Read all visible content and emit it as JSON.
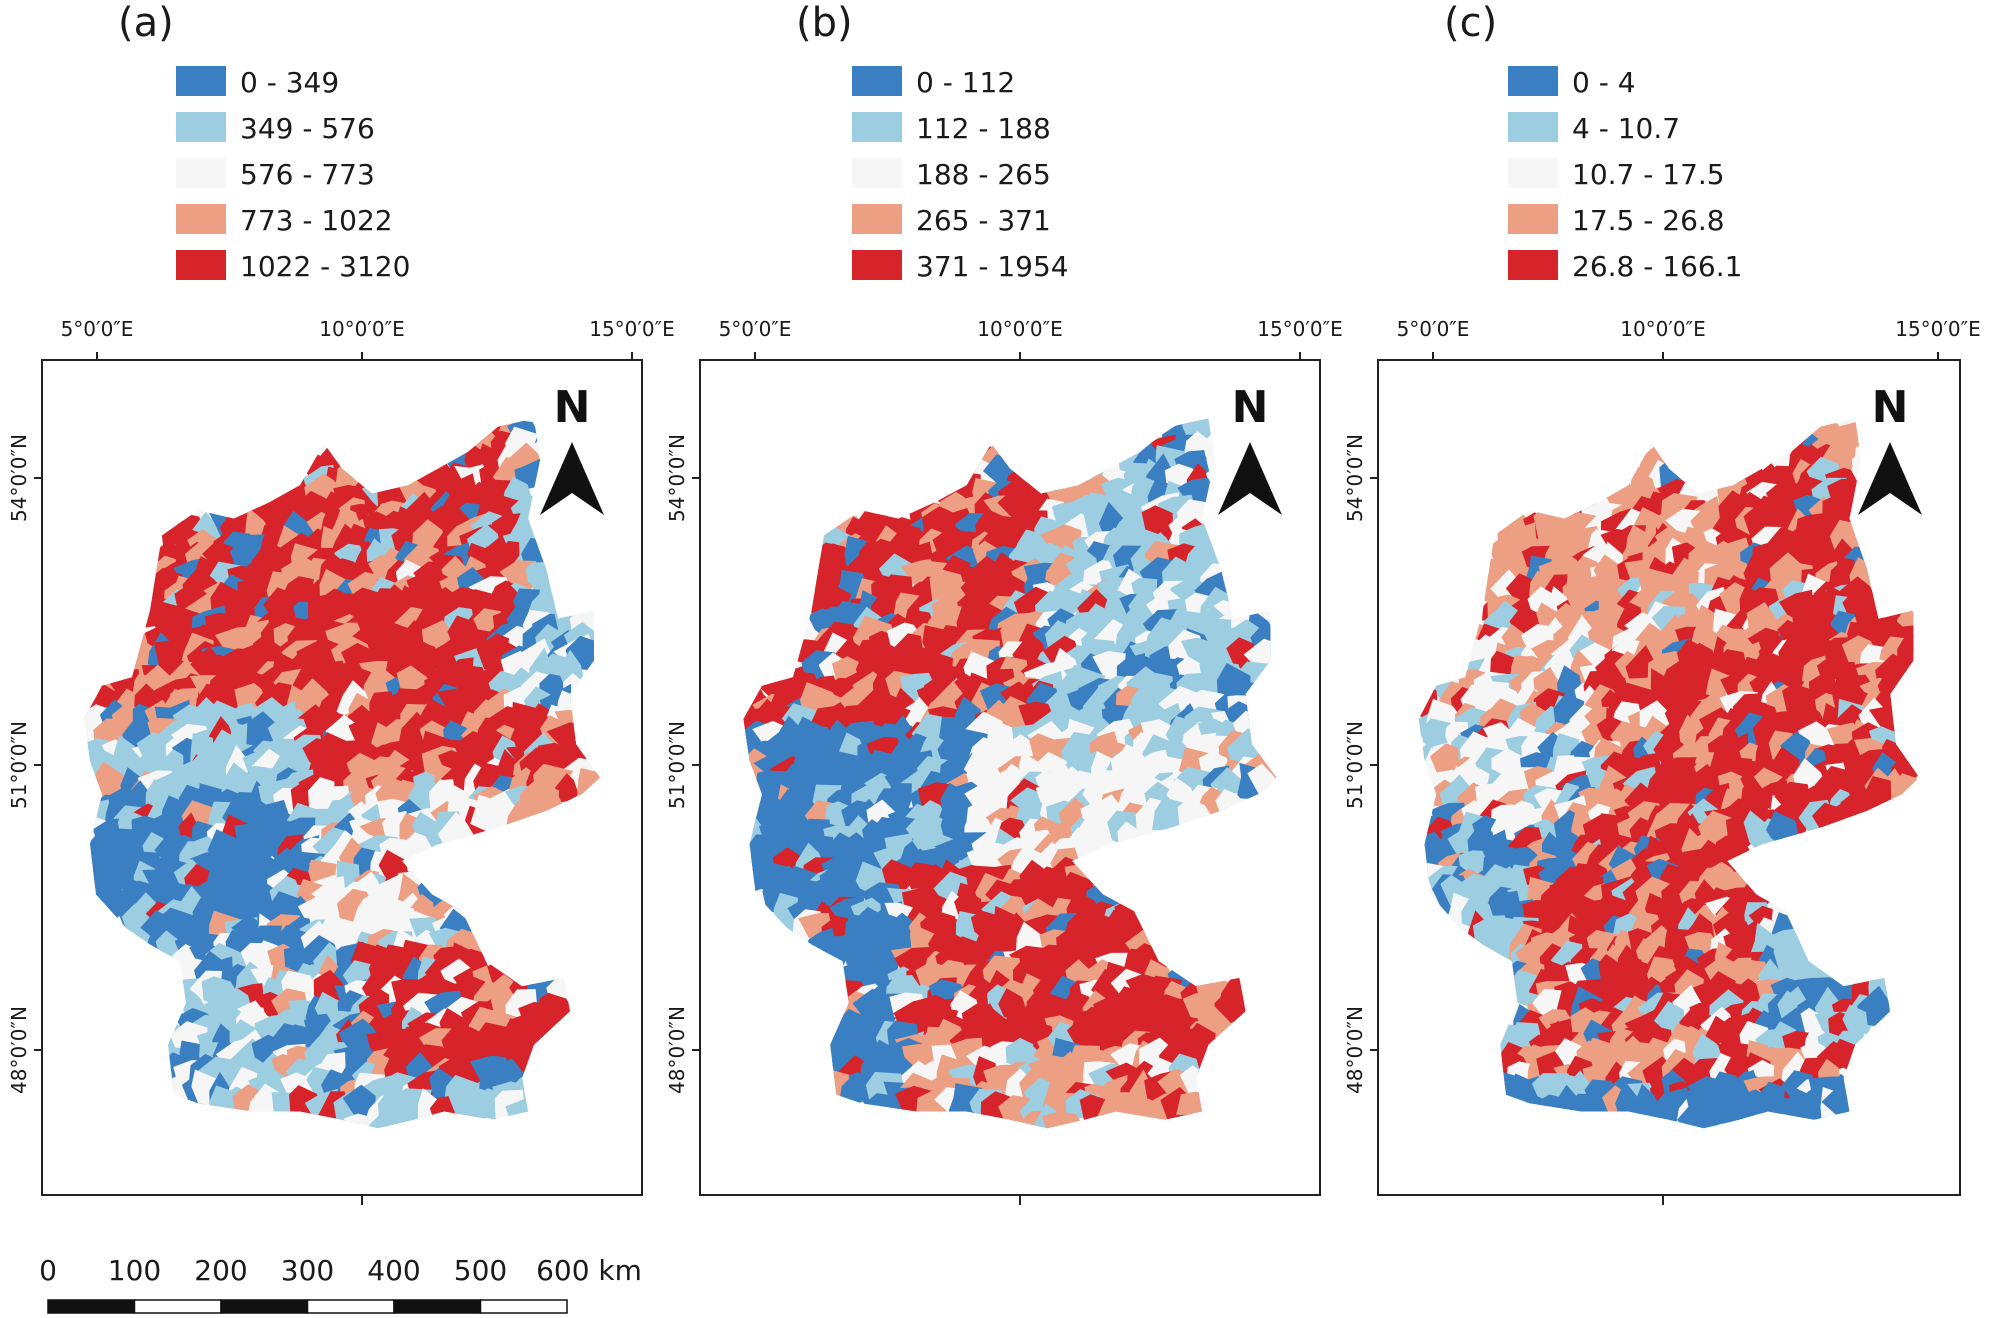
{
  "colors": {
    "class1": "#3a7fc1",
    "class2": "#9ccde0",
    "class3": "#f6f6f6",
    "class4": "#ec9f83",
    "class5": "#d7232a",
    "frame": "#222222"
  },
  "panels": [
    {
      "label": "(a)",
      "legend": [
        "0 - 349",
        "349 - 576",
        "576 - 773",
        "773 - 1022",
        "1022 - 3120"
      ]
    },
    {
      "label": "(b)",
      "legend": [
        "0 - 112",
        "112 - 188",
        "188 - 265",
        "265 - 371",
        "371 - 1954"
      ]
    },
    {
      "label": "(c)",
      "legend": [
        "0 - 4",
        "4 - 10.7",
        "10.7 - 17.5",
        "17.5 - 26.8",
        "26.8 - 166.1"
      ]
    }
  ],
  "longitude_ticks": [
    "5°0′0″E",
    "10°0′0″E",
    "15°0′0″E"
  ],
  "latitude_ticks": [
    "54°0′0″N",
    "51°0′0″N",
    "48°0′0″N"
  ],
  "north_label": "N",
  "north_icon": "north-arrow-icon",
  "scale_bar": {
    "labels": [
      "0",
      "100",
      "200",
      "300",
      "400",
      "500",
      "600 km"
    ]
  }
}
